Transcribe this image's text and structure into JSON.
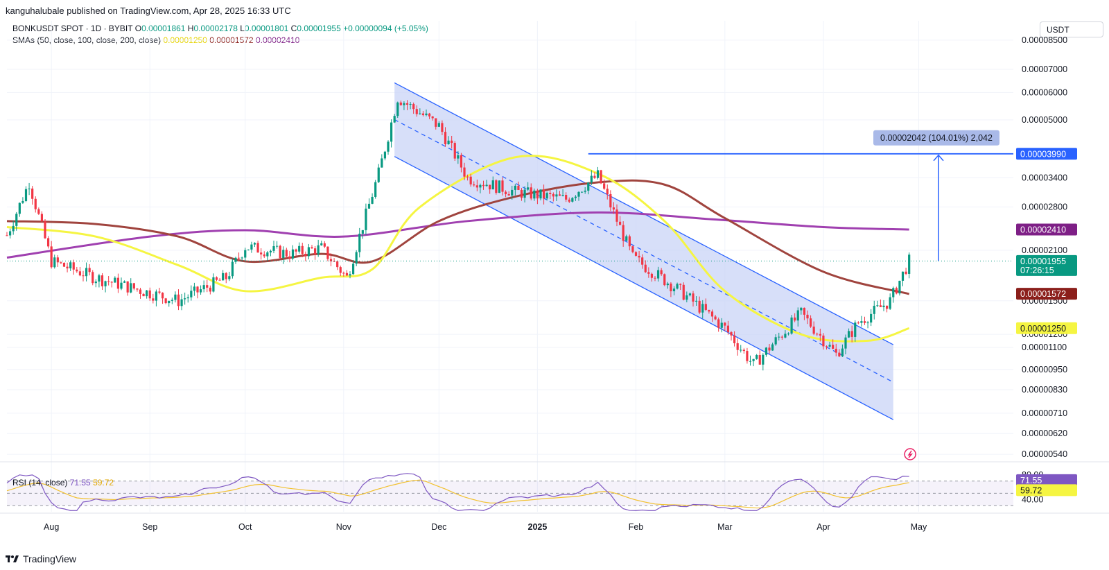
{
  "header": {
    "publisher": "kanguhalubale published on TradingView.com, Apr 28, 2025 16:33 UTC"
  },
  "legend": {
    "symbol": "BONKUSDT SPOT · 1D · BYBIT",
    "o_label": "O",
    "o_value": "0.00001861",
    "h_label": "H",
    "h_value": "0.00002178",
    "l_label": "L",
    "l_value": "0.00001801",
    "c_label": "C",
    "c_value": "0.00001955",
    "change": "+0.00000094 (+5.05%)",
    "sma_label": "SMAs (50, close, 100, close, 200, close)",
    "sma50": "0.00001250",
    "sma100": "0.00001572",
    "sma200": "0.00002410"
  },
  "rsi_legend": {
    "label": "RSI (14, close)",
    "rsi": "71.55",
    "rsi_ma": "59.72"
  },
  "currency": "USDT",
  "footer": {
    "brand": "TradingView"
  },
  "measure": {
    "label": "0.00002042 (104.01%) 2,042"
  },
  "badges": {
    "resistance": "0.00003990",
    "sma200": "0.00002410",
    "price": "0.00001955",
    "countdown": "07:26:15",
    "sma100": "0.00001572",
    "sma50": "0.00001250",
    "rsi": "71.55",
    "rsi_ma": "59.72"
  },
  "colors": {
    "up": "#089981",
    "down": "#f23645",
    "sma50": "#f5f542",
    "sma100": "#a0443e",
    "sma200": "#a040b0",
    "channel": "#2962ff",
    "channel_fill": "#c9d4f7",
    "rsi_line": "#7e57c2",
    "rsi_ma": "#f2c12e"
  },
  "chart_data": {
    "type": "candlestick",
    "symbol": "BONKUSDT",
    "timeframe": "1D",
    "scale": "log",
    "y_ticks": [
      "0.00008500",
      "0.00007000",
      "0.00006000",
      "0.00005000",
      "0.00003400",
      "0.00002800",
      "0.00002100",
      "0.00001500",
      "0.00001200",
      "0.00001100",
      "0.00000950",
      "0.00000830",
      "0.00000710",
      "0.00000620",
      "0.00000540"
    ],
    "x_ticks": [
      "Aug",
      "Sep",
      "Oct",
      "Nov",
      "Dec",
      "2025",
      "Feb",
      "Mar",
      "Apr",
      "May"
    ],
    "rsi_ticks": [
      "80.00",
      "40.00"
    ],
    "series": [
      {
        "name": "BONKUSDT",
        "points": [
          [
            "2025-07-18",
            2.32e-05
          ],
          [
            "2025-07-25",
            3.3e-05
          ],
          [
            "2025-08-01",
            1.95e-05
          ],
          [
            "2025-08-15",
            1.75e-05
          ],
          [
            "2025-09-01",
            1.58e-05
          ],
          [
            "2025-09-10",
            1.5e-05
          ],
          [
            "2025-09-25",
            1.75e-05
          ],
          [
            "2025-10-01",
            2.15e-05
          ],
          [
            "2025-10-15",
            2.05e-05
          ],
          [
            "2025-10-25",
            2.13e-05
          ],
          [
            "2025-11-02",
            1.75e-05
          ],
          [
            "2025-11-12",
            3.5e-05
          ],
          [
            "2025-11-18",
            5.8e-05
          ],
          [
            "2025-12-01",
            4.8e-05
          ],
          [
            "2025-12-10",
            3.4e-05
          ],
          [
            "2025-12-25",
            3.1e-05
          ],
          [
            "2025-01-10",
            2.95e-05
          ],
          [
            "2025-01-20",
            3.45e-05
          ],
          [
            "2025-01-31",
            2e-05
          ],
          [
            "2025-02-15",
            1.6e-05
          ],
          [
            "2025-03-01",
            1.25e-05
          ],
          [
            "2025-03-10",
            9.8e-06
          ],
          [
            "2025-03-25",
            1.38e-05
          ],
          [
            "2025-04-05",
            1.05e-05
          ],
          [
            "2025-04-12",
            1.3e-05
          ],
          [
            "2025-04-22",
            1.5e-05
          ],
          [
            "2025-04-28",
            1.955e-05
          ]
        ]
      },
      {
        "name": "SMA 50",
        "points": [
          [
            "2025-10-01",
            1.6e-05
          ],
          [
            "2025-12-25",
            3.9e-05
          ],
          [
            "2025-04-28",
            1.25e-05
          ]
        ]
      },
      {
        "name": "SMA 100",
        "points": [
          [
            "2025-07-18",
            2.55e-05
          ],
          [
            "2025-01-20",
            3.3e-05
          ],
          [
            "2025-04-28",
            1.57e-05
          ]
        ]
      },
      {
        "name": "SMA 200",
        "points": [
          [
            "2025-07-18",
            2e-05
          ],
          [
            "2025-01-20",
            2.7e-05
          ],
          [
            "2025-04-28",
            2.41e-05
          ]
        ]
      }
    ],
    "annotations": {
      "resistance": 3.99e-05,
      "measure": "0.00002042 (104.01%) 2,042",
      "rsi": 71.55,
      "rsi_ma": 59.72
    }
  }
}
